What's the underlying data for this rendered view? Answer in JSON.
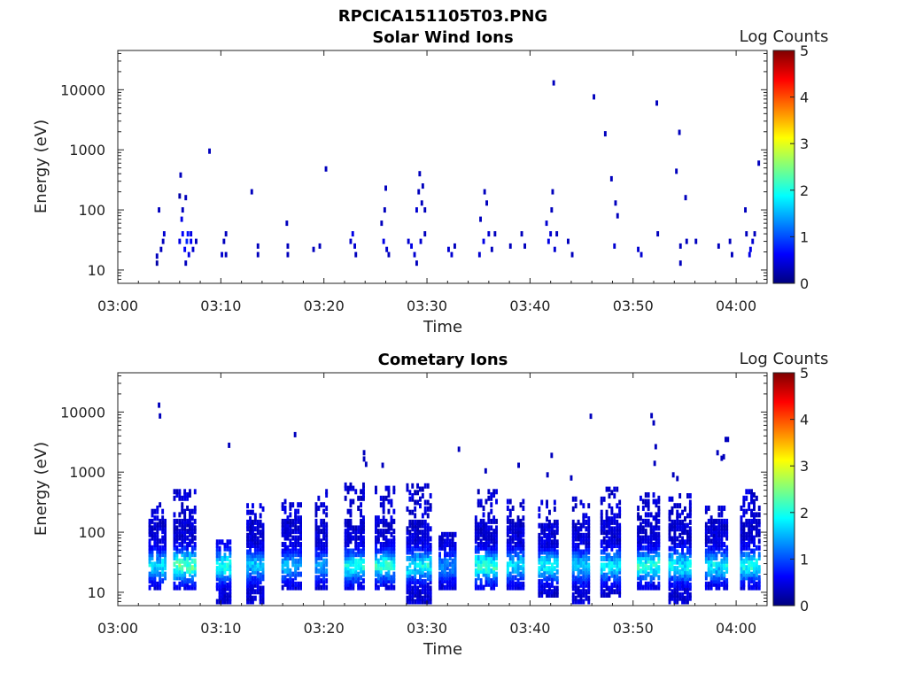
{
  "figure": {
    "title": "RPCICA151105T03.PNG"
  },
  "colorbar": {
    "label": "Log Counts",
    "range": [
      0,
      5
    ],
    "ticks": [
      "0",
      "1",
      "2",
      "3",
      "4",
      "5"
    ],
    "colormap": "jet",
    "stops": [
      "#00007f",
      "#0000ff",
      "#007fff",
      "#00ffff",
      "#7fff7f",
      "#ffff00",
      "#ff7f00",
      "#ff0000",
      "#7f0000"
    ]
  },
  "chart_data": [
    {
      "type": "heatmap",
      "title": "Solar Wind Ions",
      "xlabel": "Time",
      "ylabel": "Energy (eV)",
      "yscale": "log",
      "xlim": [
        "03:00",
        "04:03"
      ],
      "ylim": [
        6,
        45000
      ],
      "xticks": [
        "03:00",
        "03:10",
        "03:20",
        "03:30",
        "03:40",
        "03:50",
        "04:00"
      ],
      "yticks": [
        "10",
        "100",
        "1000",
        "10000"
      ],
      "zlabel": "Log Counts",
      "zlim": [
        0,
        5
      ],
      "cells": [
        [
          3.8,
          13,
          0.2
        ],
        [
          3.8,
          17,
          0.3
        ],
        [
          4.0,
          100,
          0.3
        ],
        [
          4.2,
          22,
          0.3
        ],
        [
          4.4,
          30,
          0.3
        ],
        [
          4.5,
          40,
          0.4
        ],
        [
          6.0,
          30,
          0.5
        ],
        [
          6.0,
          170,
          0.2
        ],
        [
          6.1,
          380,
          0.3
        ],
        [
          6.2,
          70,
          0.5
        ],
        [
          6.3,
          40,
          0.6
        ],
        [
          6.3,
          100,
          0.3
        ],
        [
          6.5,
          22,
          0.6
        ],
        [
          6.6,
          13,
          0.3
        ],
        [
          6.6,
          160,
          0.3
        ],
        [
          6.7,
          30,
          0.8
        ],
        [
          6.8,
          40,
          0.7
        ],
        [
          6.9,
          18,
          0.5
        ],
        [
          7.1,
          30,
          0.6
        ],
        [
          7.1,
          40,
          0.5
        ],
        [
          7.3,
          22,
          0.4
        ],
        [
          7.6,
          30,
          0.3
        ],
        [
          8.9,
          950,
          0.3
        ],
        [
          10.1,
          18,
          0.4
        ],
        [
          10.3,
          30,
          0.3
        ],
        [
          10.5,
          40,
          0.3
        ],
        [
          10.5,
          18,
          0.3
        ],
        [
          13.0,
          200,
          0.3
        ],
        [
          13.6,
          25,
          0.3
        ],
        [
          13.6,
          18,
          0.3
        ],
        [
          16.4,
          60,
          0.3
        ],
        [
          16.5,
          25,
          0.3
        ],
        [
          16.5,
          18,
          0.3
        ],
        [
          19.0,
          22,
          0.3
        ],
        [
          19.6,
          25,
          0.3
        ],
        [
          20.2,
          480,
          0.3
        ],
        [
          22.6,
          30,
          0.4
        ],
        [
          22.8,
          40,
          0.5
        ],
        [
          23.0,
          25,
          0.4
        ],
        [
          23.1,
          18,
          0.3
        ],
        [
          25.6,
          60,
          0.3
        ],
        [
          25.8,
          30,
          0.5
        ],
        [
          25.9,
          100,
          0.3
        ],
        [
          26.0,
          230,
          0.3
        ],
        [
          26.1,
          22,
          0.4
        ],
        [
          26.3,
          18,
          0.3
        ],
        [
          28.2,
          30,
          0.4
        ],
        [
          28.5,
          25,
          0.5
        ],
        [
          28.8,
          18,
          0.4
        ],
        [
          29.0,
          13,
          0.3
        ],
        [
          29.0,
          100,
          0.4
        ],
        [
          29.2,
          200,
          0.3
        ],
        [
          29.3,
          400,
          0.3
        ],
        [
          29.4,
          30,
          0.4
        ],
        [
          29.5,
          130,
          0.3
        ],
        [
          29.6,
          250,
          0.3
        ],
        [
          29.8,
          40,
          0.3
        ],
        [
          29.8,
          100,
          0.3
        ],
        [
          32.1,
          22,
          0.4
        ],
        [
          32.4,
          18,
          0.4
        ],
        [
          32.7,
          25,
          0.3
        ],
        [
          35.1,
          18,
          0.4
        ],
        [
          35.2,
          70,
          0.3
        ],
        [
          35.5,
          30,
          0.5
        ],
        [
          35.6,
          200,
          0.3
        ],
        [
          35.8,
          130,
          0.3
        ],
        [
          36.0,
          40,
          0.4
        ],
        [
          36.3,
          22,
          0.3
        ],
        [
          36.6,
          40,
          0.3
        ],
        [
          38.1,
          25,
          0.3
        ],
        [
          39.2,
          40,
          0.3
        ],
        [
          39.5,
          25,
          0.3
        ],
        [
          41.6,
          60,
          0.4
        ],
        [
          41.8,
          30,
          0.5
        ],
        [
          42.0,
          40,
          0.4
        ],
        [
          42.1,
          100,
          0.3
        ],
        [
          42.2,
          200,
          0.3
        ],
        [
          42.3,
          13000,
          0.3
        ],
        [
          42.4,
          22,
          0.4
        ],
        [
          42.6,
          40,
          0.3
        ],
        [
          43.7,
          30,
          0.3
        ],
        [
          44.1,
          18,
          0.3
        ],
        [
          46.2,
          7600,
          0.3
        ],
        [
          47.3,
          1850,
          0.3
        ],
        [
          47.9,
          330,
          0.3
        ],
        [
          48.2,
          25,
          0.4
        ],
        [
          48.3,
          130,
          0.3
        ],
        [
          48.5,
          80,
          0.3
        ],
        [
          50.5,
          22,
          0.4
        ],
        [
          50.8,
          18,
          0.4
        ],
        [
          52.3,
          6000,
          0.3
        ],
        [
          52.4,
          40,
          0.3
        ],
        [
          54.2,
          440,
          0.3
        ],
        [
          54.5,
          1950,
          0.3
        ],
        [
          54.6,
          25,
          0.3
        ],
        [
          54.6,
          13,
          0.3
        ],
        [
          55.1,
          160,
          0.3
        ],
        [
          55.2,
          30,
          0.3
        ],
        [
          56.1,
          30,
          0.3
        ],
        [
          58.3,
          25,
          0.3
        ],
        [
          59.4,
          30,
          0.3
        ],
        [
          59.6,
          18,
          0.3
        ],
        [
          60.9,
          100,
          0.3
        ],
        [
          61.0,
          40,
          0.3
        ],
        [
          61.3,
          18,
          0.5
        ],
        [
          61.4,
          22,
          0.5
        ],
        [
          61.6,
          30,
          0.4
        ],
        [
          61.8,
          40,
          0.3
        ],
        [
          62.2,
          600,
          0.3
        ]
      ]
    },
    {
      "type": "heatmap",
      "title": "Cometary Ions",
      "xlabel": "Time",
      "ylabel": "Energy (eV)",
      "yscale": "log",
      "xlim": [
        "03:00",
        "04:03"
      ],
      "ylim": [
        6,
        45000
      ],
      "xticks": [
        "03:00",
        "03:10",
        "03:20",
        "03:30",
        "03:40",
        "03:50",
        "04:00"
      ],
      "yticks": [
        "10",
        "100",
        "1000",
        "10000"
      ],
      "zlabel": "Log Counts",
      "zlim": [
        0,
        5
      ],
      "bursts": [
        {
          "center": 3.9,
          "width": 1.6,
          "peak": 1.6,
          "top": 300,
          "bottom": 12
        },
        {
          "center": 6.6,
          "width": 2.2,
          "peak": 2.2,
          "top": 520,
          "bottom": 12
        },
        {
          "center": 10.3,
          "width": 1.3,
          "peak": 1.9,
          "top": 70,
          "bottom": 7
        },
        {
          "center": 13.4,
          "width": 1.6,
          "peak": 1.4,
          "top": 300,
          "bottom": 7
        },
        {
          "center": 16.9,
          "width": 1.8,
          "peak": 1.3,
          "top": 330,
          "bottom": 12
        },
        {
          "center": 19.8,
          "width": 1.1,
          "peak": 1.1,
          "top": 500,
          "bottom": 12
        },
        {
          "center": 23.0,
          "width": 1.8,
          "peak": 1.8,
          "top": 620,
          "bottom": 12
        },
        {
          "center": 26.0,
          "width": 1.9,
          "peak": 1.9,
          "top": 550,
          "bottom": 12
        },
        {
          "center": 29.3,
          "width": 2.4,
          "peak": 1.7,
          "top": 600,
          "bottom": 7
        },
        {
          "center": 32.0,
          "width": 1.5,
          "peak": 1.0,
          "top": 100,
          "bottom": 12
        },
        {
          "center": 35.8,
          "width": 2.1,
          "peak": 2.0,
          "top": 480,
          "bottom": 12
        },
        {
          "center": 38.7,
          "width": 1.7,
          "peak": 1.5,
          "top": 330,
          "bottom": 12
        },
        {
          "center": 41.8,
          "width": 1.8,
          "peak": 1.7,
          "top": 340,
          "bottom": 9
        },
        {
          "center": 45.0,
          "width": 1.6,
          "peak": 1.4,
          "top": 380,
          "bottom": 7
        },
        {
          "center": 47.9,
          "width": 1.9,
          "peak": 1.6,
          "top": 560,
          "bottom": 9
        },
        {
          "center": 51.5,
          "width": 2.0,
          "peak": 1.9,
          "top": 470,
          "bottom": 12
        },
        {
          "center": 54.6,
          "width": 2.1,
          "peak": 1.7,
          "top": 430,
          "bottom": 7
        },
        {
          "center": 58.1,
          "width": 2.0,
          "peak": 1.6,
          "top": 300,
          "bottom": 12
        },
        {
          "center": 61.4,
          "width": 1.8,
          "peak": 1.8,
          "top": 500,
          "bottom": 12
        }
      ],
      "cells": [
        [
          4.0,
          13000,
          0.3
        ],
        [
          4.1,
          8600,
          0.3
        ],
        [
          10.8,
          2800,
          0.3
        ],
        [
          17.2,
          4200,
          0.3
        ],
        [
          23.9,
          2100,
          0.3
        ],
        [
          23.9,
          1650,
          0.3
        ],
        [
          24.1,
          1350,
          0.3
        ],
        [
          25.7,
          1300,
          0.3
        ],
        [
          33.1,
          2400,
          0.3
        ],
        [
          35.7,
          1050,
          0.3
        ],
        [
          42.1,
          1900,
          0.3
        ],
        [
          41.7,
          900,
          0.3
        ],
        [
          45.9,
          8500,
          0.3
        ],
        [
          51.8,
          8700,
          0.3
        ],
        [
          52.0,
          6600,
          0.3
        ],
        [
          52.2,
          2650,
          0.3
        ],
        [
          52.1,
          1400,
          0.3
        ],
        [
          53.9,
          900,
          0.3
        ],
        [
          54.3,
          780,
          0.3
        ],
        [
          58.2,
          2100,
          0.3
        ],
        [
          59.0,
          3500,
          0.3
        ],
        [
          59.2,
          3500,
          0.3
        ],
        [
          58.6,
          1700,
          0.3
        ],
        [
          58.8,
          1800,
          0.3
        ],
        [
          44.0,
          800,
          0.3
        ],
        [
          38.9,
          1300,
          0.3
        ]
      ]
    }
  ]
}
